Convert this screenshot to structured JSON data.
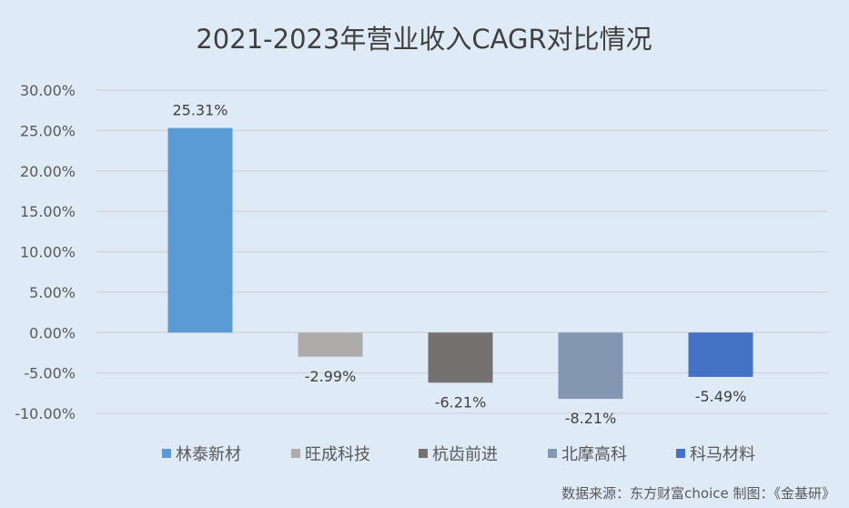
{
  "chart_data": {
    "type": "bar",
    "title": "2021-2023年营业收入CAGR对比情况",
    "xlabel": "",
    "ylabel": "",
    "ylim": [
      -10,
      30
    ],
    "yticks": [
      30,
      25,
      20,
      15,
      10,
      5,
      0,
      -5,
      -10
    ],
    "ytick_labels": [
      "30.00%",
      "25.00%",
      "20.00%",
      "15.00%",
      "10.00%",
      "5.00%",
      "0.00%",
      "-5.00%",
      "-10.00%"
    ],
    "grid": true,
    "legend_position": "bottom",
    "series": [
      {
        "name": "林泰新材",
        "value": 25.31,
        "label": "25.31%",
        "color": "#5b9bd5"
      },
      {
        "name": "旺成科技",
        "value": -2.99,
        "label": "-2.99%",
        "color": "#afabab"
      },
      {
        "name": "杭齿前进",
        "value": -6.21,
        "label": "-6.21%",
        "color": "#767171"
      },
      {
        "name": "北摩高科",
        "value": -8.21,
        "label": "-8.21%",
        "color": "#8497b0"
      },
      {
        "name": "科马材料",
        "value": -5.49,
        "label": "-5.49%",
        "color": "#4472c4"
      }
    ],
    "source_note": "数据来源：东方财富choice  制图：《金基研》"
  }
}
